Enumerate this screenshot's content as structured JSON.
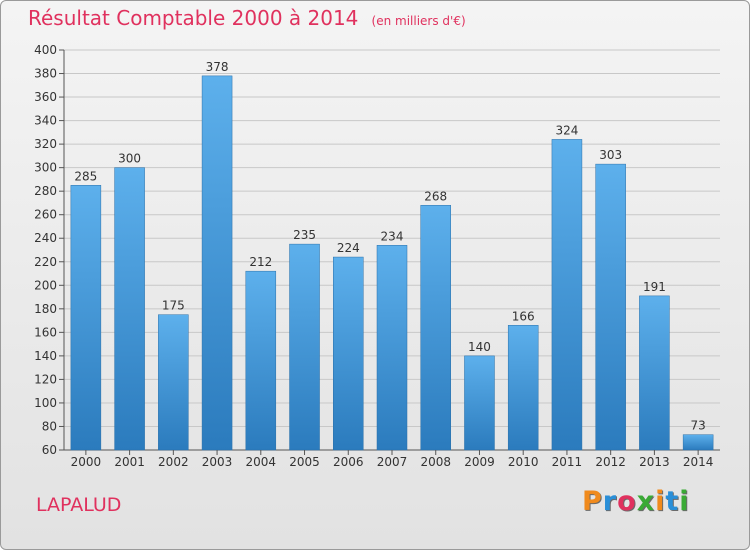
{
  "header": {
    "title": "Résultat Comptable 2000 à 2014",
    "unit": "(en milliers d'€)"
  },
  "footer": {
    "commune": "LAPALUD",
    "logo_letters": [
      "P",
      "r",
      "o",
      "x",
      "i",
      "t",
      "i"
    ],
    "logo_colors": [
      "#f08a1c",
      "#2a8fd8",
      "#e0315e",
      "#3aaa35",
      "#f08a1c",
      "#2a8fd8",
      "#3aaa35"
    ]
  },
  "colors": {
    "title": "#e0315e",
    "bar_top": "#5db0ec",
    "bar_bottom": "#2b7bbd"
  },
  "chart_data": {
    "type": "bar",
    "title": "Résultat Comptable 2000 à 2014",
    "subtitle": "(en milliers d'€)",
    "categories": [
      "2000",
      "2001",
      "2002",
      "2003",
      "2004",
      "2005",
      "2006",
      "2007",
      "2008",
      "2009",
      "2010",
      "2011",
      "2012",
      "2013",
      "2014"
    ],
    "values": [
      285,
      300,
      175,
      378,
      212,
      235,
      224,
      234,
      268,
      140,
      166,
      324,
      303,
      191,
      73
    ],
    "ylim": [
      60,
      400
    ],
    "yticks": [
      60,
      80,
      100,
      120,
      140,
      160,
      180,
      200,
      220,
      240,
      260,
      280,
      300,
      320,
      340,
      360,
      380,
      400
    ],
    "grid": true,
    "legend": "none"
  }
}
